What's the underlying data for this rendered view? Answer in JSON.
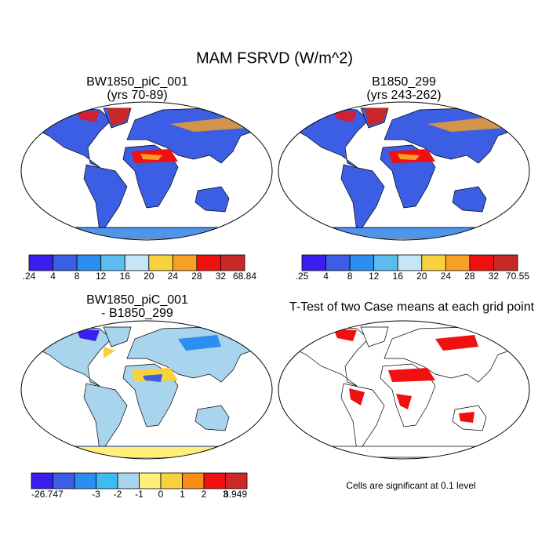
{
  "title": "MAM FSRVD (W/m^2)",
  "panels": [
    {
      "title": "BW1850_piC_001",
      "subtitle": "(yrs 70-89)"
    },
    {
      "title": "B1850_299",
      "subtitle": "(yrs 243-262)"
    },
    {
      "title": "BW1850_piC_001",
      "subtitle": "- B1850_299"
    },
    {
      "title": "T-Test of two Case means at each grid point"
    }
  ],
  "colorbars": [
    {
      "labels": [
        ".24",
        "4",
        "8",
        "12",
        "16",
        "20",
        "24",
        "28",
        "32",
        "68.84"
      ],
      "colors": [
        "#3a1ef0",
        "#3c5ee4",
        "#2a8ff0",
        "#5cbcf0",
        "#c4e6f6",
        "#f8d23c",
        "#f8a024",
        "#f01010",
        "#c82828"
      ]
    },
    {
      "labels": [
        ".25",
        "4",
        "8",
        "12",
        "16",
        "20",
        "24",
        "28",
        "32",
        "70.55"
      ],
      "colors": [
        "#3a1ef0",
        "#3c5ee4",
        "#2a8ff0",
        "#5cbcf0",
        "#c4e6f6",
        "#f8d23c",
        "#f8a024",
        "#f01010",
        "#c82828"
      ]
    },
    {
      "labels": [
        "-26.747",
        "-3",
        "-2",
        "-1",
        "0",
        "1",
        "2",
        "3",
        "8.949"
      ],
      "colors": [
        "#3a1ef0",
        "#3c5ee4",
        "#2a8ff0",
        "#3cbcf0",
        "#a8d4ee",
        "#fff07c",
        "#f8d23c",
        "#f88c14",
        "#f01010",
        "#d02828"
      ]
    }
  ],
  "note": "Cells are significant at 0.1 level"
}
